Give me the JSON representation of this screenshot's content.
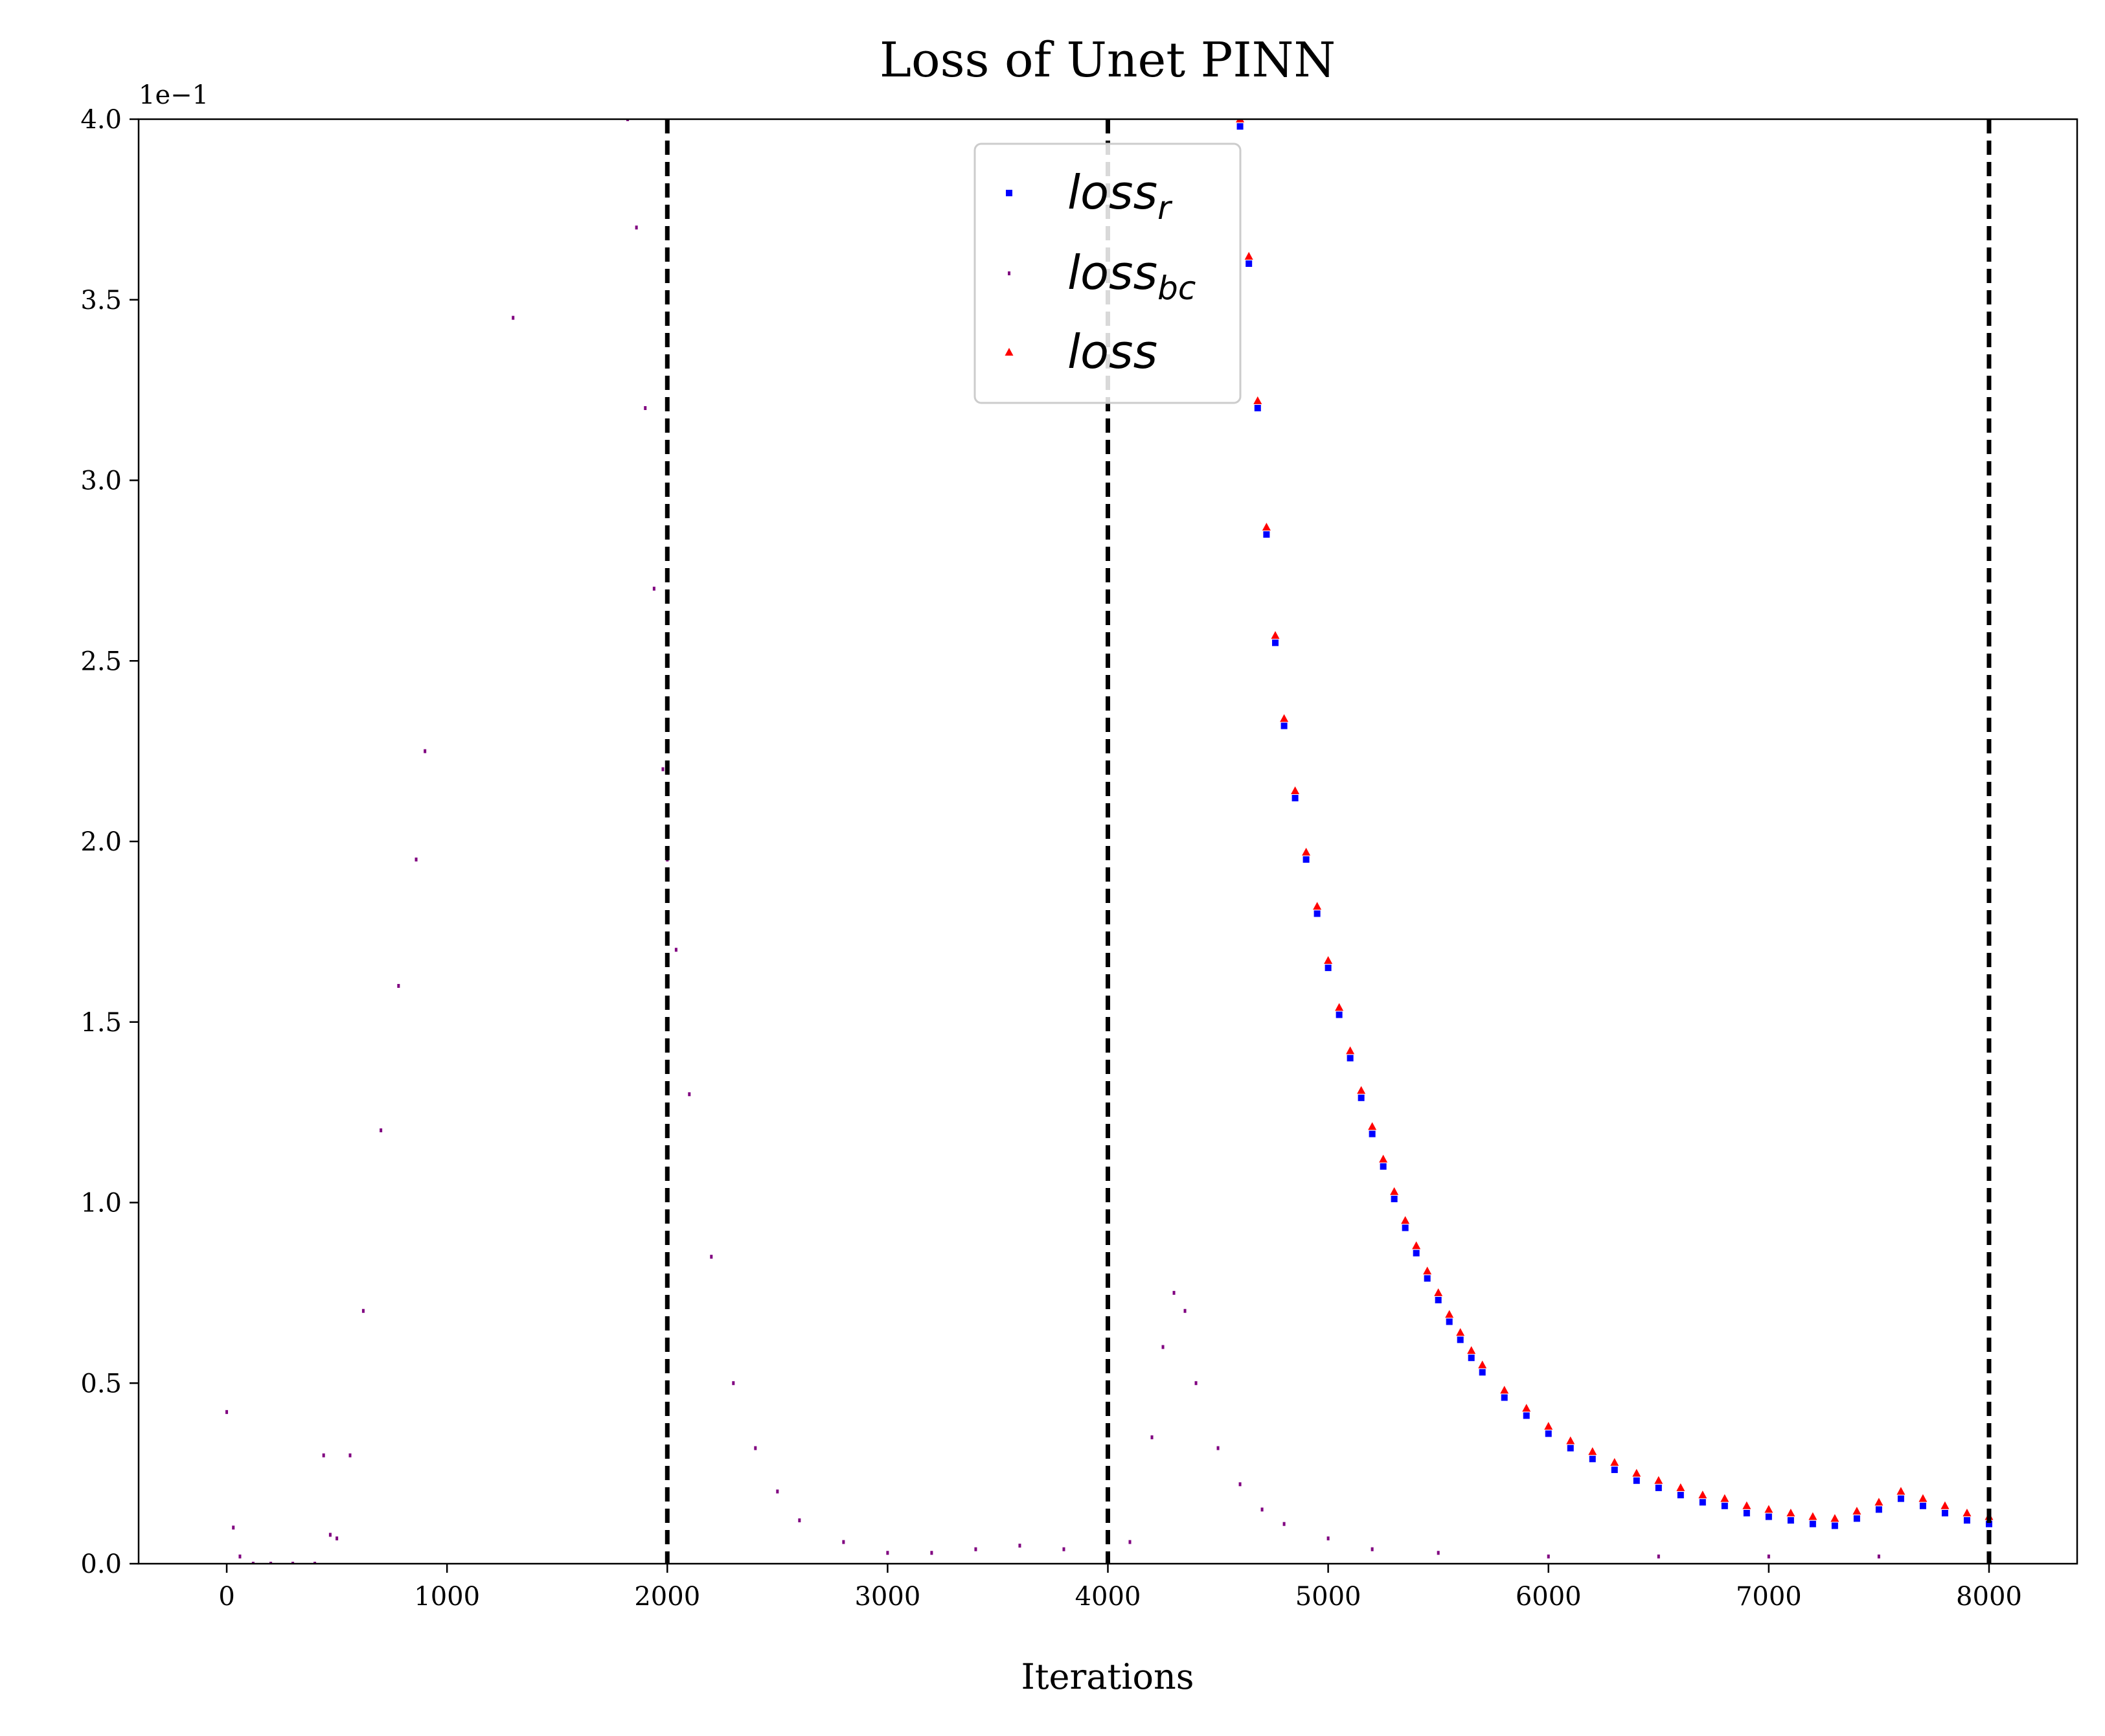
{
  "chart_data": {
    "type": "scatter",
    "title": "Loss of Unet PINN",
    "xlabel": "Iterations",
    "ylabel": "",
    "xlim": [
      -400,
      8400
    ],
    "ylim": [
      0,
      0.4
    ],
    "y_offset_label": "1e−1",
    "x_ticks": [
      0,
      1000,
      2000,
      3000,
      4000,
      5000,
      6000,
      7000,
      8000
    ],
    "x_tick_labels": [
      "0",
      "1000",
      "2000",
      "3000",
      "4000",
      "5000",
      "6000",
      "7000",
      "8000"
    ],
    "y_ticks": [
      0,
      0.05,
      0.1,
      0.15,
      0.2,
      0.25,
      0.3,
      0.35,
      0.4
    ],
    "y_tick_labels": [
      "0.0",
      "0.5",
      "1.0",
      "1.5",
      "2.0",
      "2.5",
      "3.0",
      "3.5",
      "4.0"
    ],
    "vlines": [
      2000,
      4000,
      8000
    ],
    "grid": false,
    "legend": {
      "placement": "top-center",
      "entries": [
        {
          "base": "loss",
          "sub": "r",
          "marker": "square",
          "color": "#0000ff"
        },
        {
          "base": "loss",
          "sub": "bc",
          "marker": "dot",
          "color": "#800080"
        },
        {
          "base": "loss",
          "sub": "",
          "marker": "triangle",
          "color": "#ff0000"
        }
      ]
    },
    "series": [
      {
        "name": "loss_r",
        "color": "#0000ff",
        "marker": "square",
        "x": [
          4600,
          4640,
          4680,
          4720,
          4760,
          4800,
          4850,
          4900,
          4950,
          5000,
          5050,
          5100,
          5150,
          5200,
          5250,
          5300,
          5350,
          5400,
          5450,
          5500,
          5550,
          5600,
          5650,
          5700,
          5800,
          5900,
          6000,
          6100,
          6200,
          6300,
          6400,
          6500,
          6600,
          6700,
          6800,
          6900,
          7000,
          7100,
          7200,
          7300,
          7400,
          7500,
          7600,
          7700,
          7800,
          7900,
          8000
        ],
        "y": [
          0.398,
          0.36,
          0.32,
          0.285,
          0.255,
          0.232,
          0.212,
          0.195,
          0.18,
          0.165,
          0.152,
          0.14,
          0.129,
          0.119,
          0.11,
          0.101,
          0.093,
          0.086,
          0.079,
          0.073,
          0.067,
          0.062,
          0.057,
          0.053,
          0.046,
          0.041,
          0.036,
          0.032,
          0.029,
          0.026,
          0.023,
          0.021,
          0.019,
          0.017,
          0.016,
          0.014,
          0.013,
          0.012,
          0.011,
          0.0105,
          0.0125,
          0.015,
          0.018,
          0.016,
          0.014,
          0.012,
          0.011
        ]
      },
      {
        "name": "loss_bc",
        "color": "#800080",
        "marker": "dot",
        "x": [
          0,
          30,
          60,
          120,
          200,
          300,
          400,
          440,
          470,
          500,
          560,
          620,
          700,
          780,
          860,
          900,
          1300,
          1820,
          1860,
          1900,
          1940,
          1980,
          2000,
          2040,
          2100,
          2200,
          2300,
          2400,
          2500,
          2600,
          2800,
          3000,
          3200,
          3400,
          3600,
          3800,
          4000,
          4100,
          4200,
          4250,
          4300,
          4350,
          4400,
          4500,
          4600,
          4700,
          4800,
          5000,
          5200,
          5500,
          6000,
          6500,
          7000,
          7500,
          8000
        ],
        "y": [
          0.042,
          0.01,
          0.002,
          0.0,
          0.0,
          0.0,
          0.0,
          0.03,
          0.008,
          0.007,
          0.03,
          0.07,
          0.12,
          0.16,
          0.195,
          0.225,
          0.345,
          0.4,
          0.37,
          0.32,
          0.27,
          0.22,
          0.195,
          0.17,
          0.13,
          0.085,
          0.05,
          0.032,
          0.02,
          0.012,
          0.006,
          0.003,
          0.003,
          0.004,
          0.005,
          0.004,
          0.002,
          0.006,
          0.035,
          0.06,
          0.075,
          0.07,
          0.05,
          0.032,
          0.022,
          0.015,
          0.011,
          0.007,
          0.004,
          0.003,
          0.002,
          0.002,
          0.002,
          0.002,
          0.002
        ]
      },
      {
        "name": "loss",
        "color": "#ff0000",
        "marker": "triangle",
        "x": [
          4600,
          4640,
          4680,
          4720,
          4760,
          4800,
          4850,
          4900,
          4950,
          5000,
          5050,
          5100,
          5150,
          5200,
          5250,
          5300,
          5350,
          5400,
          5450,
          5500,
          5550,
          5600,
          5650,
          5700,
          5800,
          5900,
          6000,
          6100,
          6200,
          6300,
          6400,
          6500,
          6600,
          6700,
          6800,
          6900,
          7000,
          7100,
          7200,
          7300,
          7400,
          7500,
          7600,
          7700,
          7800,
          7900,
          8000
        ],
        "y": [
          0.4,
          0.362,
          0.322,
          0.287,
          0.257,
          0.234,
          0.214,
          0.197,
          0.182,
          0.167,
          0.154,
          0.142,
          0.131,
          0.121,
          0.112,
          0.103,
          0.095,
          0.088,
          0.081,
          0.075,
          0.069,
          0.064,
          0.059,
          0.055,
          0.048,
          0.043,
          0.038,
          0.034,
          0.031,
          0.028,
          0.025,
          0.023,
          0.021,
          0.019,
          0.018,
          0.016,
          0.015,
          0.014,
          0.013,
          0.0125,
          0.0145,
          0.017,
          0.02,
          0.018,
          0.016,
          0.014,
          0.013
        ]
      }
    ]
  }
}
